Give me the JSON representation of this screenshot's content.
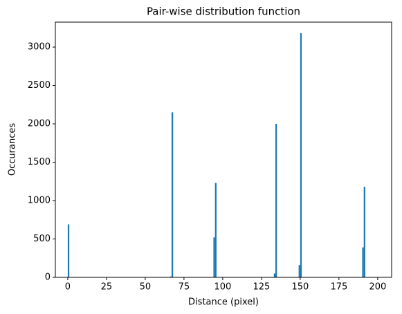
{
  "chart_data": {
    "type": "histogram",
    "title": "Pair-wise distribution function",
    "xlabel": "Distance (pixel)",
    "ylabel": "Occurances",
    "bins": [
      0,
      1,
      66,
      67,
      68,
      94,
      95,
      96,
      133,
      134,
      135,
      149,
      150,
      151,
      190,
      191,
      192,
      200
    ],
    "counts": [
      690,
      0,
      10,
      2150,
      0,
      520,
      1230,
      0,
      50,
      2000,
      0,
      160,
      3180,
      0,
      390,
      1180,
      0
    ],
    "color": "#1f77b4",
    "xlim": [
      -8,
      209
    ],
    "xticks": [
      0,
      25,
      50,
      75,
      100,
      125,
      150,
      175,
      200
    ],
    "ylim": [
      0,
      3325
    ],
    "yticks": [
      0,
      500,
      1000,
      1500,
      2000,
      2500,
      3000
    ]
  }
}
